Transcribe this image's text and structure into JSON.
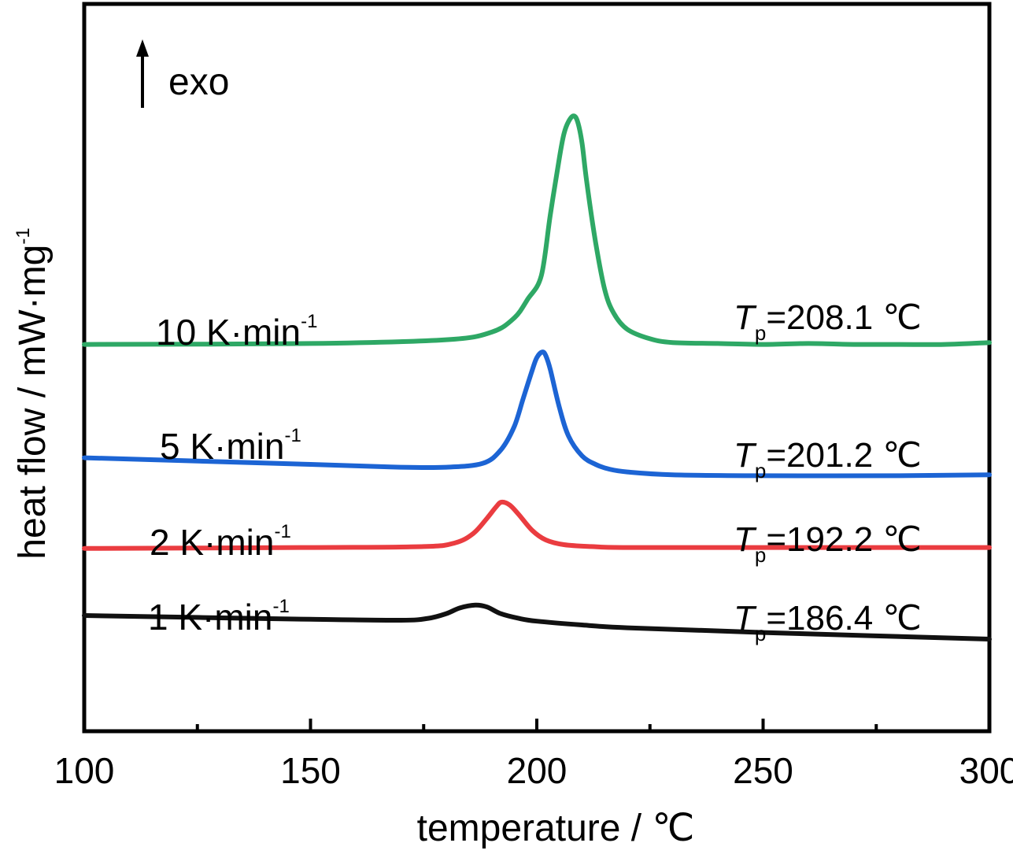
{
  "chart_data": {
    "type": "line",
    "title": "",
    "xlabel": "temperature / ℃",
    "ylabel": "heat flow / mW·mg",
    "ylabel_sup": "-1",
    "xlim": [
      100,
      300
    ],
    "xticks": [
      100,
      150,
      200,
      250,
      300
    ],
    "yticks_shown": false,
    "grid": false,
    "legend": "none",
    "annotation": {
      "text": "exo",
      "icon": "up-arrow-icon"
    },
    "series": [
      {
        "name": "10 K·min",
        "name_sup": "-1",
        "color": "#2ea865",
        "peak_symbol": "T",
        "peak_sub": "p",
        "peak_text": "=208.1 ℃",
        "x": [
          100,
          150,
          180,
          190,
          195,
          198,
          201,
          203,
          205,
          206,
          207,
          208.1,
          209,
          210,
          211,
          213,
          215,
          217,
          220,
          225,
          230,
          240,
          250,
          260,
          270,
          280,
          290,
          300
        ],
        "y": [
          3.48,
          3.47,
          3.43,
          3.35,
          3.2,
          3.0,
          2.75,
          2.1,
          1.5,
          1.25,
          1.12,
          1.06,
          1.12,
          1.35,
          1.75,
          2.4,
          2.9,
          3.15,
          3.32,
          3.42,
          3.46,
          3.47,
          3.48,
          3.47,
          3.48,
          3.48,
          3.48,
          3.46
        ]
      },
      {
        "name": "5 K·min",
        "name_sup": "-1",
        "color": "#1c64d4",
        "peak_symbol": "T",
        "peak_sub": "p",
        "peak_text": "=201.2 ℃",
        "x": [
          100,
          150,
          170,
          180,
          188,
          192,
          195,
          197,
          199,
          200,
          201.2,
          202,
          203,
          205,
          207,
          210,
          213,
          216,
          220,
          230,
          250,
          280,
          300
        ],
        "y": [
          4.68,
          4.75,
          4.78,
          4.78,
          4.74,
          4.6,
          4.35,
          4.05,
          3.75,
          3.62,
          3.56,
          3.6,
          3.75,
          4.15,
          4.45,
          4.66,
          4.75,
          4.8,
          4.83,
          4.86,
          4.87,
          4.87,
          4.86
        ]
      },
      {
        "name": "2 K·min",
        "name_sup": "-1",
        "color": "#ea3c40",
        "peak_symbol": "T",
        "peak_sub": "p",
        "peak_text": "=192.2 ℃",
        "x": [
          100,
          150,
          175,
          182,
          186,
          189,
          191,
          192.2,
          194,
          196,
          199,
          202,
          206,
          212,
          220,
          250,
          300
        ],
        "y": [
          5.64,
          5.63,
          5.62,
          5.58,
          5.48,
          5.32,
          5.2,
          5.15,
          5.18,
          5.28,
          5.45,
          5.55,
          5.6,
          5.62,
          5.63,
          5.63,
          5.63
        ]
      },
      {
        "name": "1 K·min",
        "name_sup": "-1",
        "color": "#111111",
        "peak_symbol": "T",
        "peak_sub": "p",
        "peak_text": "=186.4 ℃",
        "x": [
          100,
          150,
          170,
          176,
          180,
          183,
          186.4,
          189,
          192,
          196,
          200,
          210,
          220,
          250,
          300
        ],
        "y": [
          6.35,
          6.39,
          6.4,
          6.38,
          6.33,
          6.27,
          6.24,
          6.26,
          6.33,
          6.38,
          6.41,
          6.45,
          6.48,
          6.53,
          6.6
        ]
      }
    ]
  }
}
